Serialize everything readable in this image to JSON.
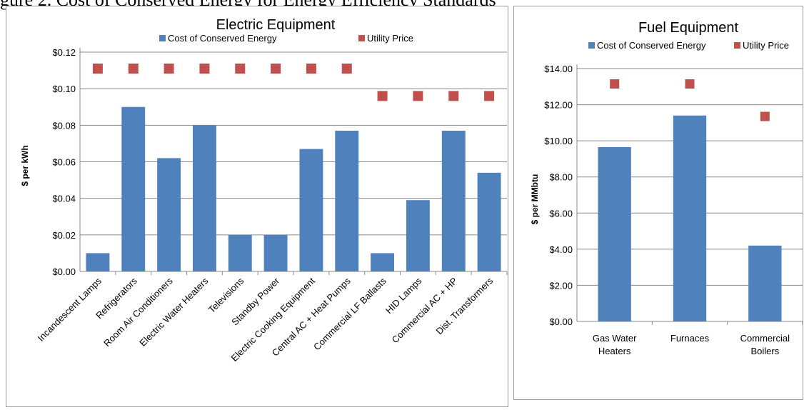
{
  "header_caption": "gure 2. Cost of Conserved Energy for Energy Efficiency Standards",
  "colors": {
    "bar": "#4f81bd",
    "marker": "#c0504d",
    "grid": "#8a8a8a",
    "frame": "#9a9a9a"
  },
  "chart_data": [
    {
      "type": "bar",
      "title": "Electric Equipment",
      "ylabel": "$ per kWh",
      "ylim": [
        0,
        0.12
      ],
      "yticks": [
        "$0.00",
        "$0.02",
        "$0.04",
        "$0.06",
        "$0.08",
        "$0.10",
        "$0.12"
      ],
      "grid": true,
      "legend_position": "top",
      "categories": [
        "Incandescent Lamps",
        "Refrigerators",
        "Room Air Conditioners",
        "Electric Water Heaters",
        "Televisions",
        "Standby Power",
        "Electric Cooking Equipment",
        "Central AC + Heat Pumps",
        "Commercial LF Ballasts",
        "HID Lamps",
        "Commercial AC + HP",
        "Dist. Transformers"
      ],
      "series": [
        {
          "name": "Cost of Conserved Energy",
          "kind": "bar",
          "values": [
            0.01,
            0.09,
            0.062,
            0.08,
            0.02,
            0.02,
            0.067,
            0.077,
            0.01,
            0.039,
            0.077,
            0.054
          ]
        },
        {
          "name": "Utility Price",
          "kind": "marker",
          "values": [
            0.111,
            0.111,
            0.111,
            0.111,
            0.111,
            0.111,
            0.111,
            0.111,
            0.096,
            0.096,
            0.096,
            0.096
          ]
        }
      ]
    },
    {
      "type": "bar",
      "title": "Fuel Equipment",
      "ylabel": "$ per MMbtu",
      "ylim": [
        0,
        14
      ],
      "yticks": [
        "$0.00",
        "$2.00",
        "$4.00",
        "$6.00",
        "$8.00",
        "$10.00",
        "$12.00",
        "$14.00"
      ],
      "grid": true,
      "legend_position": "top",
      "categories": [
        [
          "Gas Water",
          "Heaters"
        ],
        [
          "Furnaces"
        ],
        [
          "Commercial",
          "Boilers"
        ]
      ],
      "series": [
        {
          "name": "Cost of Conserved Energy",
          "kind": "bar",
          "values": [
            9.65,
            11.4,
            4.2
          ]
        },
        {
          "name": "Utility Price",
          "kind": "marker",
          "values": [
            13.15,
            13.15,
            11.35
          ]
        }
      ]
    }
  ]
}
